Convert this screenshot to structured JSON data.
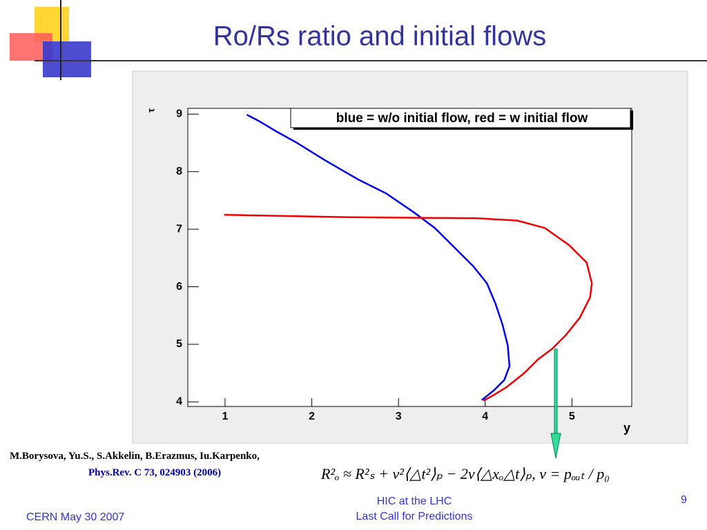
{
  "slide": {
    "title": "Ro/Rs ratio and initial  flows",
    "authors": "M.Borysova, Yu.S., S.Akkelin, B.Erazmus, Iu.Karpenko,",
    "reference": "Phys.Rev. C 73, 024903 (2006)",
    "formula": "R²ₒ ≈ R²ₛ + v²⟨△t²⟩ₚ − 2v⟨△xₒ△t⟩ₚ, v = pₒᵤₜ / p₀",
    "footer_center": [
      "HIC at the LHC",
      "Last Call for Predictions"
    ],
    "footer_left": "CERN May 30 2007",
    "page_number": "9"
  },
  "chart_data": {
    "type": "line",
    "annotation": "blue = w/o initial flow, red = w initial flow",
    "x_label": "y",
    "y_label": "τ",
    "xlim": [
      0.57,
      5.69
    ],
    "ylim": [
      3.92,
      9.1
    ],
    "xticks": [
      1,
      2,
      3,
      4,
      5
    ],
    "yticks": [
      4,
      5,
      6,
      7,
      8,
      9
    ],
    "series": [
      {
        "color": "#0000ee",
        "x": [
          1.25,
          1.39,
          1.59,
          1.83,
          2.15,
          2.54,
          2.86,
          3.18,
          3.42,
          3.66,
          3.86,
          4.02,
          4.12,
          4.2,
          4.26,
          4.28,
          4.22,
          4.1,
          3.96
        ],
        "values": [
          8.99,
          8.88,
          8.7,
          8.5,
          8.2,
          7.86,
          7.62,
          7.29,
          7.02,
          6.66,
          6.36,
          6.06,
          5.7,
          5.34,
          4.98,
          4.62,
          4.38,
          4.2,
          4.03
        ]
      },
      {
        "color": "#ee0000",
        "x": [
          0.99,
          2.38,
          3.9,
          4.37,
          4.69,
          4.97,
          5.17,
          5.23,
          5.21,
          5.09,
          4.93,
          4.77,
          4.61,
          4.45,
          4.25,
          4.1,
          3.98
        ],
        "values": [
          7.25,
          7.21,
          7.19,
          7.15,
          7.02,
          6.72,
          6.42,
          6.06,
          5.82,
          5.46,
          5.16,
          4.92,
          4.74,
          4.5,
          4.26,
          4.12,
          4.02
        ]
      }
    ]
  }
}
